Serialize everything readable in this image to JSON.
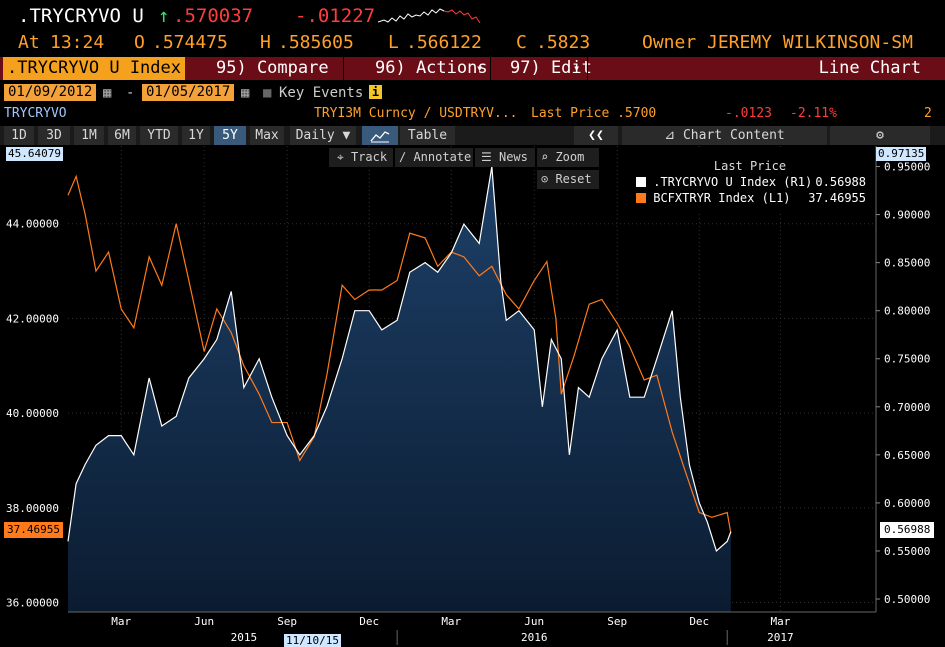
{
  "header": {
    "ticker": ".TRYCRYVO U",
    "arrow": "↑",
    "last": ".570037",
    "change": "-.01227",
    "at_label": "At",
    "time": "13:24",
    "open_label": "O",
    "open": ".574475",
    "high_label": "H",
    "high": ".585605",
    "low_label": "L",
    "low": ".566122",
    "close_label": "C",
    "close": ".5823",
    "owner_label": "Owner",
    "owner": "JEREMY WILKINSON-SM"
  },
  "toolbar": {
    "index_tab": ".TRYCRYVO U Index",
    "compare": "95) Compare",
    "actions": "96) Actions",
    "actions_caret": "▾",
    "edit": "97) Edit",
    "edit_caret": "▾",
    "view": "Line Chart"
  },
  "range": {
    "start": "01/09/2012",
    "dash": "-",
    "end": "01/05/2017",
    "key_events": "Key Events",
    "info": "i"
  },
  "subheader": {
    "left": "TRYCRYVO",
    "security": "TRYI3M Curncy / USDTRYV...",
    "last_price": "Last Price .5700",
    "change": "-.0123",
    "pct": "-2.11%",
    "count": "2"
  },
  "periods": [
    "1D",
    "3D",
    "1M",
    "6M",
    "YTD",
    "1Y",
    "5Y",
    "Max"
  ],
  "selected_period": "5Y",
  "frequency": "Daily ▼",
  "table_label": "Table",
  "chart_content": "Chart Content",
  "chart_tools": {
    "track": "Track",
    "annotate": "Annotate",
    "news": "News",
    "zoom": "Zoom",
    "reset": "Reset"
  },
  "colors": {
    "white_series": "#ffffff",
    "orange_series": "#ff7a1a",
    "area_fill_top": "#1b3a5e",
    "area_fill_bottom": "#0c1d33"
  },
  "chart_data": {
    "type": "line",
    "legend": {
      "title": "Last Price",
      "placement": "top-right",
      "entries": [
        {
          "name": ".TRYCRYVO U Index",
          "axis": "(R1)",
          "value": "0.56988"
        },
        {
          "name": "BCFXTRYR Index",
          "axis": "(L1)",
          "value": "37.46955"
        }
      ]
    },
    "x_ticks": [
      "Mar",
      "Jun",
      "Sep",
      "Dec",
      "Mar",
      "Jun",
      "Sep",
      "Dec",
      "Mar"
    ],
    "x_years": [
      "2015",
      "2016",
      "2017"
    ],
    "x_cursor_label": "11/10/15",
    "left_axis": {
      "ticks": [
        "36.00000",
        "38.00000",
        "40.00000",
        "42.00000",
        "44.00000"
      ],
      "ylim": [
        35.8,
        45.64079
      ],
      "top_label": "45.64079",
      "last_label": "37.46955"
    },
    "right_axis": {
      "ticks": [
        "0.50000",
        "0.55000",
        "0.60000",
        "0.65000",
        "0.70000",
        "0.75000",
        "0.80000",
        "0.85000",
        "0.90000",
        "0.95000"
      ],
      "ylim": [
        0.4865,
        0.97135
      ],
      "top_label": "0.97135",
      "last_label": "0.56988"
    },
    "x_range": [
      "2015-01-01",
      "2017-06-15"
    ],
    "series": [
      {
        "name": ".TRYCRYVO U Index",
        "axis": "right",
        "style": "area",
        "points": [
          [
            "2015-01-01",
            0.56
          ],
          [
            "2015-01-10",
            0.62
          ],
          [
            "2015-01-20",
            0.64
          ],
          [
            "2015-02-01",
            0.66
          ],
          [
            "2015-02-15",
            0.67
          ],
          [
            "2015-03-01",
            0.67
          ],
          [
            "2015-03-15",
            0.65
          ],
          [
            "2015-04-01",
            0.73
          ],
          [
            "2015-04-15",
            0.68
          ],
          [
            "2015-05-01",
            0.69
          ],
          [
            "2015-05-15",
            0.73
          ],
          [
            "2015-06-01",
            0.75
          ],
          [
            "2015-06-15",
            0.77
          ],
          [
            "2015-07-01",
            0.82
          ],
          [
            "2015-07-15",
            0.72
          ],
          [
            "2015-08-01",
            0.75
          ],
          [
            "2015-08-15",
            0.71
          ],
          [
            "2015-09-01",
            0.67
          ],
          [
            "2015-09-15",
            0.65
          ],
          [
            "2015-10-01",
            0.67
          ],
          [
            "2015-10-15",
            0.7
          ],
          [
            "2015-11-01",
            0.75
          ],
          [
            "2015-11-15",
            0.8
          ],
          [
            "2015-12-01",
            0.8
          ],
          [
            "2015-12-15",
            0.78
          ],
          [
            "2016-01-01",
            0.79
          ],
          [
            "2016-01-15",
            0.84
          ],
          [
            "2016-02-01",
            0.85
          ],
          [
            "2016-02-15",
            0.84
          ],
          [
            "2016-03-01",
            0.86
          ],
          [
            "2016-03-15",
            0.89
          ],
          [
            "2016-04-01",
            0.87
          ],
          [
            "2016-04-15",
            0.95
          ],
          [
            "2016-04-25",
            0.83
          ],
          [
            "2016-05-01",
            0.79
          ],
          [
            "2016-05-15",
            0.8
          ],
          [
            "2016-06-01",
            0.78
          ],
          [
            "2016-06-10",
            0.7
          ],
          [
            "2016-06-20",
            0.77
          ],
          [
            "2016-07-01",
            0.75
          ],
          [
            "2016-07-10",
            0.65
          ],
          [
            "2016-07-20",
            0.72
          ],
          [
            "2016-08-01",
            0.71
          ],
          [
            "2016-08-15",
            0.75
          ],
          [
            "2016-09-01",
            0.78
          ],
          [
            "2016-09-15",
            0.71
          ],
          [
            "2016-10-01",
            0.71
          ],
          [
            "2016-10-15",
            0.75
          ],
          [
            "2016-11-01",
            0.8
          ],
          [
            "2016-11-10",
            0.71
          ],
          [
            "2016-11-20",
            0.64
          ],
          [
            "2016-12-01",
            0.6
          ],
          [
            "2016-12-10",
            0.58
          ],
          [
            "2016-12-20",
            0.55
          ],
          [
            "2017-01-01",
            0.56
          ],
          [
            "2017-01-05",
            0.57
          ]
        ]
      },
      {
        "name": "BCFXTRYR Index",
        "axis": "left",
        "style": "line",
        "points": [
          [
            "2015-01-01",
            44.6
          ],
          [
            "2015-01-10",
            45.0
          ],
          [
            "2015-01-20",
            44.2
          ],
          [
            "2015-02-01",
            43.0
          ],
          [
            "2015-02-15",
            43.4
          ],
          [
            "2015-03-01",
            42.2
          ],
          [
            "2015-03-15",
            41.8
          ],
          [
            "2015-04-01",
            43.3
          ],
          [
            "2015-04-15",
            42.7
          ],
          [
            "2015-05-01",
            44.0
          ],
          [
            "2015-05-15",
            42.8
          ],
          [
            "2015-06-01",
            41.3
          ],
          [
            "2015-06-15",
            42.2
          ],
          [
            "2015-07-01",
            41.7
          ],
          [
            "2015-07-15",
            41.0
          ],
          [
            "2015-08-01",
            40.4
          ],
          [
            "2015-08-15",
            39.8
          ],
          [
            "2015-09-01",
            39.8
          ],
          [
            "2015-09-15",
            39.0
          ],
          [
            "2015-10-01",
            39.5
          ],
          [
            "2015-10-15",
            40.8
          ],
          [
            "2015-11-01",
            42.7
          ],
          [
            "2015-11-15",
            42.4
          ],
          [
            "2015-12-01",
            42.6
          ],
          [
            "2015-12-15",
            42.6
          ],
          [
            "2016-01-01",
            42.8
          ],
          [
            "2016-01-15",
            43.8
          ],
          [
            "2016-02-01",
            43.7
          ],
          [
            "2016-02-15",
            43.1
          ],
          [
            "2016-03-01",
            43.4
          ],
          [
            "2016-03-15",
            43.3
          ],
          [
            "2016-04-01",
            42.9
          ],
          [
            "2016-04-15",
            43.1
          ],
          [
            "2016-05-01",
            42.5
          ],
          [
            "2016-05-15",
            42.2
          ],
          [
            "2016-06-01",
            42.8
          ],
          [
            "2016-06-15",
            43.2
          ],
          [
            "2016-06-25",
            42.0
          ],
          [
            "2016-07-01",
            40.4
          ],
          [
            "2016-07-15",
            41.2
          ],
          [
            "2016-08-01",
            42.3
          ],
          [
            "2016-08-15",
            42.4
          ],
          [
            "2016-09-01",
            41.9
          ],
          [
            "2016-09-15",
            41.4
          ],
          [
            "2016-10-01",
            40.7
          ],
          [
            "2016-10-15",
            40.8
          ],
          [
            "2016-11-01",
            39.6
          ],
          [
            "2016-11-15",
            38.8
          ],
          [
            "2016-12-01",
            37.9
          ],
          [
            "2016-12-15",
            37.8
          ],
          [
            "2017-01-01",
            37.9
          ],
          [
            "2017-01-05",
            37.47
          ]
        ]
      }
    ]
  }
}
